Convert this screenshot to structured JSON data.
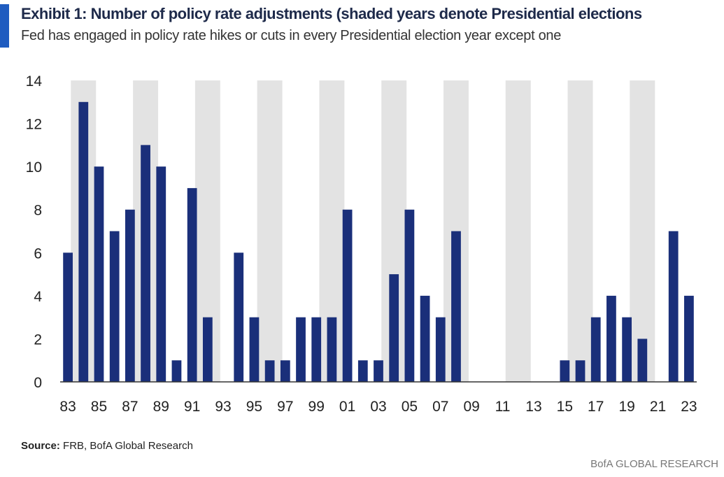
{
  "header": {
    "title": "Exhibit 1: Number of policy rate adjustments (shaded years denote Presidential elections",
    "subtitle": "Fed has engaged in policy rate hikes or cuts in every Presidential election year except one"
  },
  "footer": {
    "source_label": "Source:",
    "source_text": " FRB, BofA Global Research",
    "brand": "BofA GLOBAL RESEARCH"
  },
  "colors": {
    "bar": "#1a2f7a",
    "shade": "#e3e3e3",
    "accent": "#1f5cc0",
    "axis": "#333333"
  },
  "chart_data": {
    "type": "bar",
    "title": "Exhibit 1: Number of policy rate adjustments (shaded years denote Presidential elections",
    "xlabel": "",
    "ylabel": "",
    "ylim": [
      0,
      14
    ],
    "yticks": [
      0,
      2,
      4,
      6,
      8,
      10,
      12,
      14
    ],
    "categories": [
      "83",
      "84",
      "85",
      "86",
      "87",
      "88",
      "89",
      "90",
      "91",
      "92",
      "93",
      "94",
      "95",
      "96",
      "97",
      "98",
      "99",
      "00",
      "01",
      "02",
      "03",
      "04",
      "05",
      "06",
      "07",
      "08",
      "09",
      "10",
      "11",
      "12",
      "13",
      "14",
      "15",
      "16",
      "17",
      "18",
      "19",
      "20",
      "21",
      "22",
      "23"
    ],
    "values": [
      6,
      13,
      10,
      7,
      8,
      11,
      10,
      1,
      9,
      3,
      0,
      6,
      3,
      1,
      1,
      3,
      3,
      3,
      8,
      1,
      1,
      5,
      8,
      4,
      3,
      7,
      0,
      0,
      0,
      0,
      0,
      0,
      1,
      1,
      3,
      4,
      3,
      2,
      0,
      7,
      4
    ],
    "xtick_labels": [
      "83",
      "85",
      "87",
      "89",
      "91",
      "93",
      "95",
      "97",
      "99",
      "01",
      "03",
      "05",
      "07",
      "09",
      "11",
      "13",
      "15",
      "17",
      "19",
      "21",
      "23"
    ],
    "shaded_years": [
      "84",
      "88",
      "92",
      "96",
      "00",
      "04",
      "08",
      "12",
      "16",
      "20"
    ],
    "grid": false
  }
}
